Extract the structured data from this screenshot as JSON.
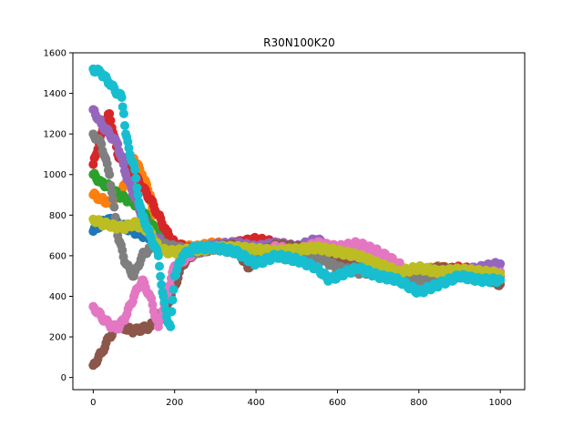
{
  "chart_data": {
    "type": "scatter",
    "title": "R30N100K20",
    "xlabel": "",
    "ylabel": "",
    "xlim": [
      -50,
      1060
    ],
    "ylim": [
      -60,
      1600
    ],
    "x_ticks": [
      0,
      200,
      400,
      600,
      800,
      1000
    ],
    "y_ticks": [
      0,
      200,
      400,
      600,
      800,
      1000,
      1200,
      1400,
      1600
    ],
    "grid": false,
    "legend": "none",
    "series": [
      {
        "color": "#1f77b4",
        "points": [
          [
            0,
            720
          ],
          [
            20,
            760
          ],
          [
            40,
            780
          ],
          [
            60,
            760
          ],
          [
            80,
            740
          ],
          [
            100,
            720
          ],
          [
            120,
            700
          ],
          [
            140,
            690
          ],
          [
            160,
            680
          ],
          [
            180,
            660
          ],
          [
            200,
            640
          ],
          [
            250,
            620
          ],
          [
            300,
            640
          ],
          [
            350,
            660
          ],
          [
            400,
            640
          ],
          [
            450,
            620
          ],
          [
            500,
            600
          ],
          [
            550,
            620
          ],
          [
            600,
            580
          ],
          [
            650,
            560
          ],
          [
            700,
            540
          ],
          [
            750,
            520
          ],
          [
            800,
            500
          ],
          [
            850,
            520
          ],
          [
            900,
            500
          ],
          [
            950,
            520
          ],
          [
            1000,
            500
          ]
        ]
      },
      {
        "color": "#ff7f0e",
        "points": [
          [
            0,
            900
          ],
          [
            20,
            880
          ],
          [
            40,
            860
          ],
          [
            60,
            900
          ],
          [
            80,
            950
          ],
          [
            100,
            1080
          ],
          [
            120,
            1000
          ],
          [
            140,
            900
          ],
          [
            150,
            750
          ],
          [
            160,
            700
          ],
          [
            180,
            680
          ],
          [
            200,
            650
          ],
          [
            250,
            640
          ],
          [
            300,
            660
          ],
          [
            350,
            640
          ],
          [
            400,
            620
          ],
          [
            450,
            640
          ],
          [
            500,
            620
          ],
          [
            550,
            600
          ],
          [
            600,
            560
          ],
          [
            650,
            540
          ],
          [
            700,
            520
          ],
          [
            750,
            500
          ],
          [
            800,
            520
          ],
          [
            850,
            540
          ],
          [
            900,
            520
          ],
          [
            950,
            500
          ],
          [
            1000,
            520
          ]
        ]
      },
      {
        "color": "#2ca02c",
        "points": [
          [
            0,
            1000
          ],
          [
            20,
            960
          ],
          [
            40,
            940
          ],
          [
            60,
            900
          ],
          [
            80,
            880
          ],
          [
            100,
            860
          ],
          [
            120,
            820
          ],
          [
            140,
            760
          ],
          [
            160,
            700
          ],
          [
            180,
            680
          ],
          [
            200,
            640
          ],
          [
            230,
            580
          ],
          [
            250,
            620
          ],
          [
            300,
            640
          ],
          [
            350,
            660
          ],
          [
            400,
            650
          ],
          [
            450,
            640
          ],
          [
            500,
            620
          ],
          [
            550,
            600
          ],
          [
            600,
            580
          ],
          [
            650,
            560
          ],
          [
            700,
            520
          ],
          [
            750,
            500
          ],
          [
            800,
            480
          ],
          [
            850,
            500
          ],
          [
            900,
            520
          ],
          [
            950,
            500
          ],
          [
            1000,
            480
          ]
        ]
      },
      {
        "color": "#d62728",
        "points": [
          [
            0,
            1050
          ],
          [
            20,
            1200
          ],
          [
            40,
            1300
          ],
          [
            60,
            1100
          ],
          [
            80,
            1060
          ],
          [
            100,
            1000
          ],
          [
            120,
            940
          ],
          [
            140,
            880
          ],
          [
            160,
            800
          ],
          [
            180,
            720
          ],
          [
            200,
            660
          ],
          [
            250,
            620
          ],
          [
            300,
            640
          ],
          [
            350,
            660
          ],
          [
            400,
            680
          ],
          [
            450,
            660
          ],
          [
            500,
            640
          ],
          [
            550,
            640
          ],
          [
            600,
            600
          ],
          [
            650,
            580
          ],
          [
            700,
            560
          ],
          [
            750,
            520
          ],
          [
            800,
            500
          ],
          [
            850,
            520
          ],
          [
            900,
            540
          ],
          [
            950,
            520
          ],
          [
            1000,
            500
          ]
        ]
      },
      {
        "color": "#9467bd",
        "points": [
          [
            0,
            1320
          ],
          [
            20,
            1250
          ],
          [
            40,
            1200
          ],
          [
            60,
            1150
          ],
          [
            80,
            1000
          ],
          [
            100,
            900
          ],
          [
            120,
            800
          ],
          [
            140,
            700
          ],
          [
            160,
            680
          ],
          [
            180,
            650
          ],
          [
            200,
            640
          ],
          [
            250,
            620
          ],
          [
            300,
            650
          ],
          [
            350,
            660
          ],
          [
            400,
            640
          ],
          [
            450,
            660
          ],
          [
            500,
            640
          ],
          [
            550,
            680
          ],
          [
            600,
            600
          ],
          [
            650,
            560
          ],
          [
            700,
            520
          ],
          [
            750,
            500
          ],
          [
            800,
            480
          ],
          [
            850,
            500
          ],
          [
            900,
            520
          ],
          [
            950,
            540
          ],
          [
            1000,
            560
          ]
        ]
      },
      {
        "color": "#8c564b",
        "points": [
          [
            0,
            60
          ],
          [
            20,
            120
          ],
          [
            40,
            200
          ],
          [
            60,
            260
          ],
          [
            80,
            240
          ],
          [
            100,
            230
          ],
          [
            120,
            240
          ],
          [
            140,
            250
          ],
          [
            160,
            300
          ],
          [
            180,
            350
          ],
          [
            200,
            450
          ],
          [
            220,
            560
          ],
          [
            250,
            620
          ],
          [
            300,
            640
          ],
          [
            350,
            650
          ],
          [
            380,
            540
          ],
          [
            400,
            600
          ],
          [
            450,
            650
          ],
          [
            500,
            640
          ],
          [
            550,
            620
          ],
          [
            600,
            560
          ],
          [
            650,
            540
          ],
          [
            700,
            560
          ],
          [
            750,
            520
          ],
          [
            800,
            500
          ],
          [
            850,
            540
          ],
          [
            900,
            520
          ],
          [
            950,
            500
          ],
          [
            1000,
            460
          ]
        ]
      },
      {
        "color": "#e377c2",
        "points": [
          [
            0,
            350
          ],
          [
            20,
            300
          ],
          [
            40,
            260
          ],
          [
            60,
            240
          ],
          [
            80,
            300
          ],
          [
            100,
            400
          ],
          [
            120,
            480
          ],
          [
            140,
            400
          ],
          [
            160,
            250
          ],
          [
            180,
            400
          ],
          [
            200,
            550
          ],
          [
            250,
            620
          ],
          [
            300,
            640
          ],
          [
            350,
            620
          ],
          [
            400,
            600
          ],
          [
            450,
            640
          ],
          [
            500,
            620
          ],
          [
            550,
            660
          ],
          [
            600,
            640
          ],
          [
            650,
            660
          ],
          [
            700,
            620
          ],
          [
            750,
            560
          ],
          [
            800,
            460
          ],
          [
            850,
            500
          ],
          [
            900,
            520
          ],
          [
            950,
            500
          ],
          [
            1000,
            520
          ]
        ]
      },
      {
        "color": "#7f7f7f",
        "points": [
          [
            0,
            1200
          ],
          [
            20,
            1150
          ],
          [
            40,
            1000
          ],
          [
            60,
            700
          ],
          [
            80,
            560
          ],
          [
            100,
            500
          ],
          [
            120,
            600
          ],
          [
            140,
            640
          ],
          [
            160,
            660
          ],
          [
            180,
            650
          ],
          [
            200,
            640
          ],
          [
            250,
            620
          ],
          [
            300,
            640
          ],
          [
            350,
            620
          ],
          [
            400,
            610
          ],
          [
            450,
            600
          ],
          [
            500,
            580
          ],
          [
            550,
            600
          ],
          [
            600,
            540
          ],
          [
            650,
            520
          ],
          [
            700,
            520
          ],
          [
            750,
            500
          ],
          [
            800,
            480
          ],
          [
            850,
            500
          ],
          [
            900,
            520
          ],
          [
            950,
            510
          ],
          [
            1000,
            500
          ]
        ]
      },
      {
        "color": "#bcbd22",
        "points": [
          [
            0,
            780
          ],
          [
            20,
            760
          ],
          [
            40,
            750
          ],
          [
            60,
            740
          ],
          [
            80,
            740
          ],
          [
            100,
            760
          ],
          [
            120,
            740
          ],
          [
            140,
            720
          ],
          [
            160,
            640
          ],
          [
            180,
            620
          ],
          [
            200,
            620
          ],
          [
            250,
            630
          ],
          [
            300,
            640
          ],
          [
            350,
            640
          ],
          [
            400,
            630
          ],
          [
            450,
            620
          ],
          [
            500,
            630
          ],
          [
            550,
            640
          ],
          [
            600,
            620
          ],
          [
            650,
            600
          ],
          [
            700,
            560
          ],
          [
            750,
            520
          ],
          [
            800,
            540
          ],
          [
            850,
            520
          ],
          [
            900,
            530
          ],
          [
            950,
            520
          ],
          [
            1000,
            510
          ]
        ]
      },
      {
        "color": "#17becf",
        "points": [
          [
            0,
            1520
          ],
          [
            20,
            1500
          ],
          [
            40,
            1450
          ],
          [
            60,
            1400
          ],
          [
            70,
            1380
          ],
          [
            75,
            1300
          ],
          [
            80,
            1200
          ],
          [
            90,
            1100
          ],
          [
            100,
            1050
          ],
          [
            110,
            900
          ],
          [
            120,
            800
          ],
          [
            130,
            750
          ],
          [
            140,
            700
          ],
          [
            150,
            650
          ],
          [
            160,
            600
          ],
          [
            170,
            420
          ],
          [
            180,
            300
          ],
          [
            190,
            250
          ],
          [
            200,
            500
          ],
          [
            220,
            600
          ],
          [
            250,
            640
          ],
          [
            300,
            640
          ],
          [
            350,
            620
          ],
          [
            400,
            560
          ],
          [
            450,
            600
          ],
          [
            500,
            580
          ],
          [
            550,
            540
          ],
          [
            580,
            480
          ],
          [
            600,
            500
          ],
          [
            650,
            540
          ],
          [
            700,
            500
          ],
          [
            750,
            480
          ],
          [
            800,
            420
          ],
          [
            850,
            460
          ],
          [
            900,
            500
          ],
          [
            950,
            480
          ],
          [
            1000,
            480
          ]
        ]
      }
    ]
  }
}
